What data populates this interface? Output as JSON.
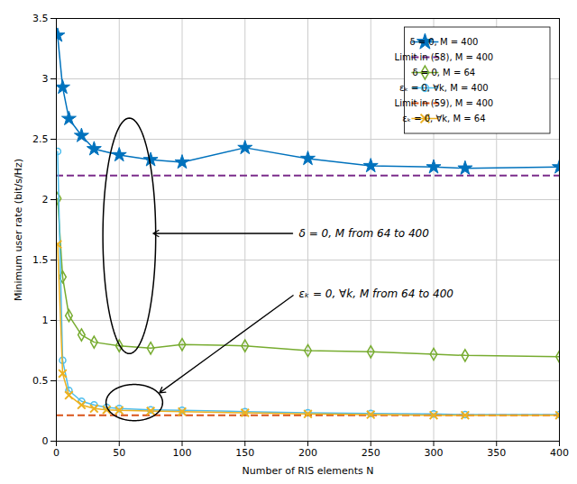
{
  "chart_data": {
    "type": "line",
    "xlabel": "Number of RIS elements N",
    "ylabel": "Minimum user rate (bit/s/Hz)",
    "xlim": [
      0,
      400
    ],
    "ylim": [
      0,
      3.5
    ],
    "xticks": [
      0,
      50,
      100,
      150,
      200,
      250,
      300,
      350,
      400
    ],
    "yticks": [
      0,
      0.5,
      1.0,
      1.5,
      2.0,
      2.5,
      3.0,
      3.5
    ],
    "grid": true,
    "legend": "upper right",
    "series": [
      {
        "name": "δ = 0, M = 400",
        "color": "#0072BD",
        "marker": "star",
        "line_style": "solid",
        "x": [
          1,
          5,
          10,
          20,
          30,
          50,
          75,
          100,
          150,
          200,
          250,
          300,
          325,
          400
        ],
        "values": [
          3.36,
          2.93,
          2.67,
          2.53,
          2.42,
          2.37,
          2.33,
          2.31,
          2.43,
          2.34,
          2.28,
          2.27,
          2.26,
          2.27
        ]
      },
      {
        "name": "Limit in (58), M = 400",
        "color": "#7B2D8B",
        "type": "hline",
        "line_style": "dashed",
        "values": [
          2.2
        ]
      },
      {
        "name": "δ = 0, M = 64",
        "color": "#77AC30",
        "marker": "diamond",
        "line_style": "solid",
        "x": [
          1,
          5,
          10,
          20,
          30,
          50,
          75,
          100,
          150,
          200,
          250,
          300,
          325,
          400
        ],
        "values": [
          2.01,
          1.36,
          1.04,
          0.88,
          0.82,
          0.79,
          0.77,
          0.8,
          0.79,
          0.75,
          0.74,
          0.72,
          0.71,
          0.7
        ]
      },
      {
        "name": "εₖ = 0, ∀k, M = 400",
        "color": "#4DBEEE",
        "marker": "circle",
        "line_style": "solid",
        "x": [
          1,
          5,
          10,
          20,
          30,
          40,
          50,
          75,
          100,
          150,
          200,
          250,
          300,
          325,
          400
        ],
        "values": [
          2.4,
          0.67,
          0.42,
          0.33,
          0.3,
          0.28,
          0.27,
          0.26,
          0.255,
          0.245,
          0.235,
          0.23,
          0.225,
          0.22,
          0.22
        ]
      },
      {
        "name": "Limit in (59), M = 400",
        "color": "#D95319",
        "type": "hline",
        "line_style": "dashed",
        "values": [
          0.215
        ]
      },
      {
        "name": "εₖ = 0, ∀k, M = 64",
        "color": "#EDB120",
        "marker": "x",
        "line_style": "solid",
        "x": [
          1,
          5,
          10,
          20,
          30,
          40,
          50,
          75,
          100,
          150,
          200,
          250,
          300,
          325,
          400
        ],
        "values": [
          1.63,
          0.56,
          0.38,
          0.3,
          0.27,
          0.26,
          0.255,
          0.25,
          0.245,
          0.235,
          0.225,
          0.22,
          0.215,
          0.215,
          0.215
        ]
      }
    ],
    "annotations": [
      "δ = 0, M from 64 to 400",
      "εₖ = 0, ∀k, M from 64 to 400"
    ]
  }
}
